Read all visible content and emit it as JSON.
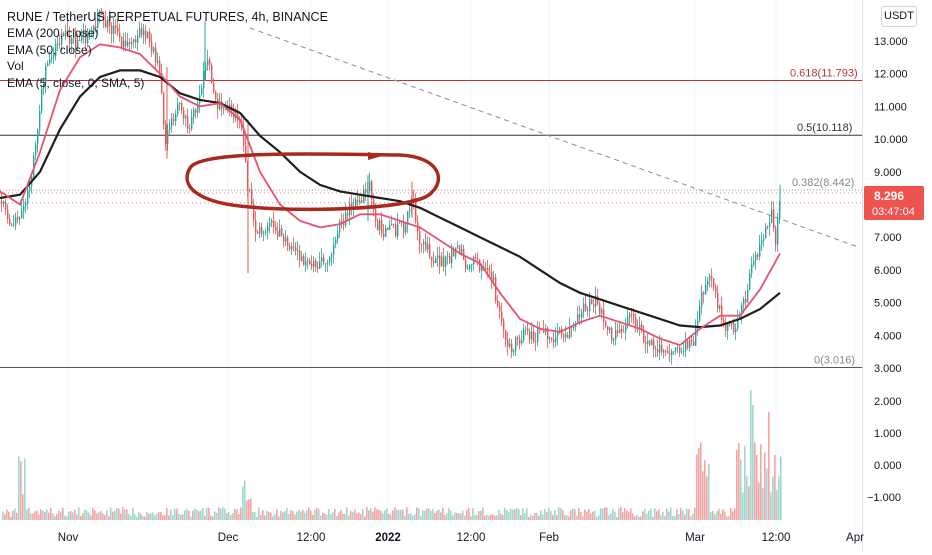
{
  "header": {
    "title": "RUNE / TetherUS PERPETUAL FUTURES, 4h, BINANCE",
    "indicators": [
      "EMA (200, close)",
      "EMA (50, close)",
      "Vol",
      "EMA (5, close, 0, SMA, 5)"
    ],
    "currency": "USDT"
  },
  "colors": {
    "up": "#26a69a",
    "down": "#ef5350",
    "ema_slow": "#1f1f1f",
    "ema_fast": "#e8516f",
    "fib_line": "#b03a3a",
    "price_badge": "#ef5350",
    "annotation": "#a8291f"
  },
  "chart_data": {
    "type": "candlestick",
    "price_axis": {
      "min": 3.0,
      "max": 14.0,
      "ticks": [
        "13.000",
        "12.000",
        "11.000",
        "10.000",
        "9.000",
        "8.000",
        "7.000",
        "6.000",
        "5.000",
        "4.000",
        "3.000"
      ]
    },
    "volume_axis": {
      "ticks": [
        "2.000",
        "1.000",
        "0.000",
        "−1.000"
      ]
    },
    "time_axis": {
      "labels": [
        "Nov",
        "Dec",
        "12:00",
        "2022",
        "12:00",
        "Feb",
        "Mar",
        "12:00",
        "Apr"
      ]
    },
    "fib_levels": [
      {
        "label": "0.618(11.793)",
        "value": 11.793
      },
      {
        "label": "0.5(10.118)",
        "value": 10.118
      },
      {
        "label": "0.382(8.442)",
        "value": 8.442
      },
      {
        "label": "0(3.016)",
        "value": 3.016
      }
    ],
    "price_badge": {
      "price": "8.296",
      "countdown": "03:47:04"
    },
    "price_path": [
      [
        0,
        8.1
      ],
      [
        14,
        7.4
      ],
      [
        22,
        7.6
      ],
      [
        32,
        9.0
      ],
      [
        42,
        11.5
      ],
      [
        50,
        12.6
      ],
      [
        56,
        12.8
      ],
      [
        64,
        13.2
      ],
      [
        72,
        13.0
      ],
      [
        80,
        12.9
      ],
      [
        90,
        13.3
      ],
      [
        100,
        13.7
      ],
      [
        110,
        13.5
      ],
      [
        120,
        13.0
      ],
      [
        130,
        12.8
      ],
      [
        140,
        13.3
      ],
      [
        150,
        13.0
      ],
      [
        160,
        12.2
      ],
      [
        166,
        9.8
      ],
      [
        172,
        10.6
      ],
      [
        180,
        11.0
      ],
      [
        190,
        10.4
      ],
      [
        198,
        11.2
      ],
      [
        204,
        11.9
      ],
      [
        208,
        12.5
      ],
      [
        214,
        11.4
      ],
      [
        222,
        10.8
      ],
      [
        232,
        10.9
      ],
      [
        242,
        10.5
      ],
      [
        248,
        8.6
      ],
      [
        256,
        7.2
      ],
      [
        264,
        7.1
      ],
      [
        272,
        7.4
      ],
      [
        282,
        7.0
      ],
      [
        292,
        6.6
      ],
      [
        302,
        6.3
      ],
      [
        312,
        6.2
      ],
      [
        322,
        6.3
      ],
      [
        332,
        6.4
      ],
      [
        340,
        7.3
      ],
      [
        350,
        7.9
      ],
      [
        360,
        8.2
      ],
      [
        370,
        8.5
      ],
      [
        376,
        7.4
      ],
      [
        385,
        7.2
      ],
      [
        395,
        7.2
      ],
      [
        405,
        7.3
      ],
      [
        412,
        8.3
      ],
      [
        420,
        6.9
      ],
      [
        428,
        6.6
      ],
      [
        438,
        6.3
      ],
      [
        448,
        6.3
      ],
      [
        458,
        6.8
      ],
      [
        466,
        6.1
      ],
      [
        474,
        6.2
      ],
      [
        484,
        6.0
      ],
      [
        494,
        5.6
      ],
      [
        502,
        4.3
      ],
      [
        508,
        3.6
      ],
      [
        516,
        3.8
      ],
      [
        526,
        4.1
      ],
      [
        536,
        4.0
      ],
      [
        546,
        4.0
      ],
      [
        556,
        4.0
      ],
      [
        566,
        4.0
      ],
      [
        576,
        4.5
      ],
      [
        586,
        4.9
      ],
      [
        596,
        5.0
      ],
      [
        604,
        4.6
      ],
      [
        612,
        4.0
      ],
      [
        622,
        4.1
      ],
      [
        632,
        4.6
      ],
      [
        642,
        4.0
      ],
      [
        652,
        3.7
      ],
      [
        662,
        3.6
      ],
      [
        672,
        3.3
      ],
      [
        680,
        3.5
      ],
      [
        688,
        3.7
      ],
      [
        694,
        3.9
      ],
      [
        700,
        5.0
      ],
      [
        706,
        5.7
      ],
      [
        712,
        5.6
      ],
      [
        720,
        4.7
      ],
      [
        726,
        4.3
      ],
      [
        732,
        4.2
      ],
      [
        740,
        4.5
      ],
      [
        746,
        5.2
      ],
      [
        752,
        6.0
      ],
      [
        760,
        6.6
      ],
      [
        766,
        7.2
      ],
      [
        772,
        7.8
      ],
      [
        776,
        6.9
      ],
      [
        780,
        8.3
      ]
    ],
    "ema_200": [
      [
        0,
        8.2
      ],
      [
        20,
        8.3
      ],
      [
        40,
        9.0
      ],
      [
        60,
        10.3
      ],
      [
        80,
        11.3
      ],
      [
        100,
        11.9
      ],
      [
        120,
        12.1
      ],
      [
        140,
        12.1
      ],
      [
        160,
        11.9
      ],
      [
        180,
        11.4
      ],
      [
        200,
        11.2
      ],
      [
        220,
        11.1
      ],
      [
        240,
        10.8
      ],
      [
        260,
        10.1
      ],
      [
        280,
        9.6
      ],
      [
        300,
        9.0
      ],
      [
        320,
        8.6
      ],
      [
        340,
        8.4
      ],
      [
        360,
        8.3
      ],
      [
        380,
        8.2
      ],
      [
        400,
        8.1
      ],
      [
        420,
        7.9
      ],
      [
        440,
        7.6
      ],
      [
        460,
        7.3
      ],
      [
        480,
        7.0
      ],
      [
        500,
        6.7
      ],
      [
        520,
        6.4
      ],
      [
        540,
        6.0
      ],
      [
        560,
        5.6
      ],
      [
        580,
        5.3
      ],
      [
        600,
        5.1
      ],
      [
        620,
        4.9
      ],
      [
        640,
        4.7
      ],
      [
        660,
        4.5
      ],
      [
        680,
        4.3
      ],
      [
        700,
        4.25
      ],
      [
        720,
        4.3
      ],
      [
        740,
        4.5
      ],
      [
        760,
        4.8
      ],
      [
        780,
        5.3
      ]
    ],
    "ema_50": [
      [
        0,
        8.4
      ],
      [
        20,
        8.0
      ],
      [
        40,
        9.6
      ],
      [
        60,
        11.5
      ],
      [
        80,
        12.5
      ],
      [
        100,
        12.9
      ],
      [
        120,
        12.8
      ],
      [
        140,
        12.6
      ],
      [
        160,
        12.0
      ],
      [
        180,
        11.3
      ],
      [
        200,
        11.0
      ],
      [
        220,
        11.1
      ],
      [
        240,
        10.6
      ],
      [
        260,
        9.0
      ],
      [
        280,
        8.0
      ],
      [
        300,
        7.5
      ],
      [
        320,
        7.3
      ],
      [
        340,
        7.4
      ],
      [
        360,
        7.7
      ],
      [
        380,
        7.7
      ],
      [
        400,
        7.5
      ],
      [
        420,
        7.3
      ],
      [
        440,
        6.9
      ],
      [
        460,
        6.5
      ],
      [
        480,
        6.2
      ],
      [
        500,
        5.3
      ],
      [
        520,
        4.5
      ],
      [
        540,
        4.2
      ],
      [
        560,
        4.1
      ],
      [
        580,
        4.4
      ],
      [
        600,
        4.6
      ],
      [
        620,
        4.4
      ],
      [
        640,
        4.2
      ],
      [
        660,
        3.9
      ],
      [
        680,
        3.7
      ],
      [
        700,
        4.2
      ],
      [
        720,
        4.6
      ],
      [
        740,
        4.6
      ],
      [
        760,
        5.4
      ],
      [
        780,
        6.5
      ]
    ]
  }
}
